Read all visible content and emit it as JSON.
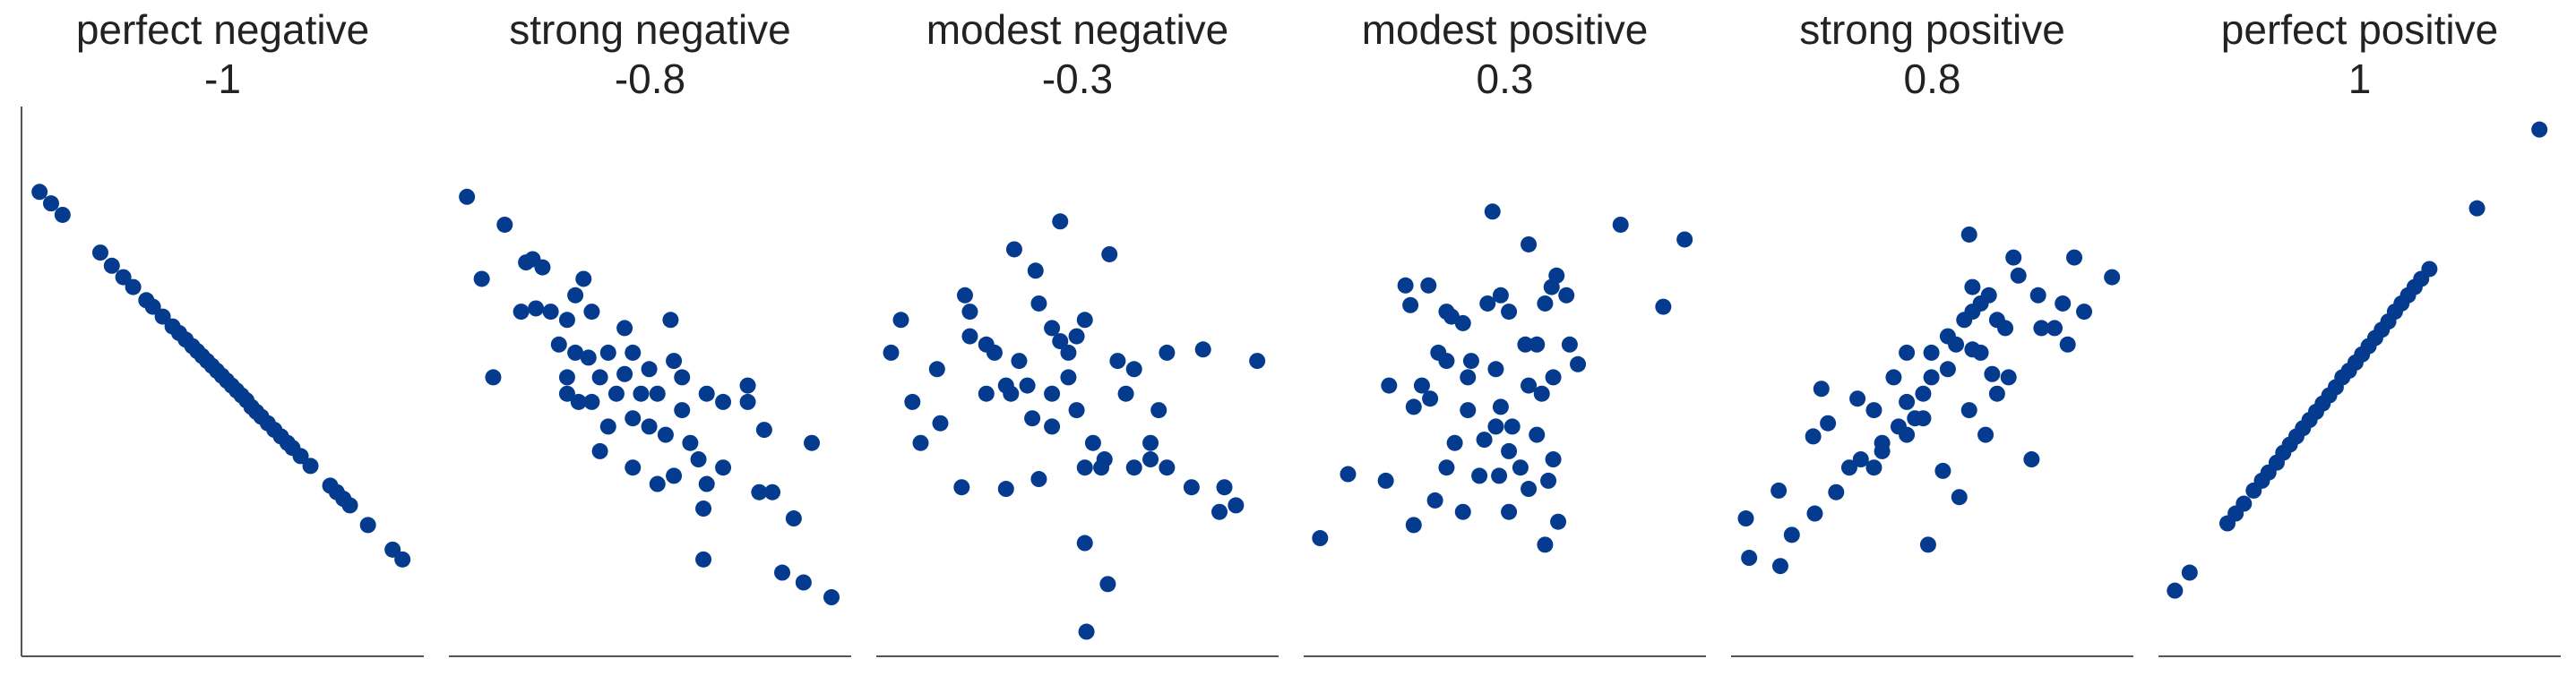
{
  "chart_data": [
    {
      "type": "scatter",
      "title": "perfect negative",
      "subtitle": -1,
      "color": "#053b8f",
      "xlim": [
        0,
        245
      ],
      "ylim": [
        0,
        335
      ],
      "x": [
        11,
        18,
        25,
        48,
        55,
        62,
        68,
        76,
        80,
        86,
        92,
        96,
        100,
        104,
        107,
        110,
        113,
        116,
        119,
        122,
        125,
        128,
        131,
        134,
        137,
        140,
        143,
        146,
        150,
        154,
        158,
        162,
        165,
        170,
        176,
        188,
        192,
        196,
        200,
        211,
        226,
        232
      ],
      "values": [
        283,
        276,
        269,
        246,
        238,
        231,
        225,
        217,
        213,
        207,
        201,
        197,
        193,
        189,
        186,
        183,
        180,
        177,
        174,
        171,
        168,
        165,
        162,
        159,
        156,
        152,
        149,
        146,
        142,
        138,
        134,
        130,
        127,
        122,
        116,
        104,
        100,
        96,
        92,
        80,
        65,
        59
      ]
    },
    {
      "type": "scatter",
      "title": "strong negative",
      "subtitle": -0.8,
      "color": "#053b8f",
      "xlim": [
        0,
        245
      ],
      "ylim": [
        0,
        335
      ],
      "x": [
        11,
        34,
        20,
        51,
        57,
        44,
        53,
        82,
        77,
        72,
        87,
        67,
        77,
        85,
        97,
        112,
        27,
        72,
        92,
        107,
        122,
        135,
        137,
        142,
        127,
        117,
        102,
        87,
        79,
        97,
        112,
        122,
        132,
        142,
        157,
        167,
        182,
        182,
        147,
        112,
        127,
        137,
        152,
        167,
        192,
        157,
        189,
        197,
        210,
        155,
        155,
        221,
        203,
        216,
        233,
        92,
        72,
        62,
        47,
        107
      ],
      "values": [
        280,
        263,
        230,
        242,
        237,
        210,
        212,
        230,
        220,
        205,
        210,
        190,
        185,
        182,
        185,
        185,
        170,
        170,
        170,
        172,
        175,
        205,
        180,
        170,
        160,
        160,
        160,
        155,
        155,
        140,
        145,
        140,
        135,
        150,
        160,
        155,
        165,
        155,
        130,
        115,
        105,
        110,
        120,
        115,
        138,
        105,
        100,
        100,
        84,
        90,
        59,
        130,
        51,
        45,
        36,
        125,
        160,
        210,
        240,
        200
      ]
    },
    {
      "type": "scatter",
      "title": "modest negative",
      "subtitle": -0.3,
      "color": "#053b8f",
      "xlim": [
        0,
        245
      ],
      "ylim": [
        0,
        335
      ],
      "x": [
        15,
        9,
        22,
        27,
        39,
        37,
        54,
        57,
        67,
        72,
        67,
        79,
        84,
        97,
        99,
        107,
        112,
        117,
        122,
        127,
        82,
        92,
        107,
        95,
        107,
        122,
        132,
        139,
        147,
        157,
        152,
        167,
        172,
        177,
        199,
        232,
        52,
        79,
        99,
        127,
        137,
        157,
        167,
        177,
        192,
        212,
        209,
        219,
        127,
        141,
        128,
        112,
        142,
        57,
        87,
        117
      ],
      "values": [
        205,
        185,
        155,
        130,
        142,
        175,
        220,
        210,
        190,
        185,
        160,
        165,
        248,
        235,
        215,
        200,
        192,
        185,
        195,
        205,
        160,
        165,
        160,
        145,
        140,
        150,
        130,
        120,
        180,
        175,
        160,
        130,
        150,
        185,
        187,
        180,
        103,
        102,
        108,
        115,
        115,
        115,
        120,
        115,
        103,
        103,
        88,
        92,
        69,
        44,
        15,
        265,
        245,
        195,
        180,
        170
      ]
    },
    {
      "type": "scatter",
      "title": "modest positive",
      "subtitle": 0.3,
      "color": "#053b8f",
      "xlim": [
        0,
        245
      ],
      "ylim": [
        0,
        335
      ],
      "x": [
        10,
        27,
        50,
        62,
        65,
        76,
        87,
        90,
        97,
        112,
        115,
        120,
        125,
        137,
        147,
        151,
        154,
        160,
        135,
        142,
        162,
        167,
        152,
        137,
        117,
        102,
        87,
        82,
        72,
        52,
        67,
        77,
        100,
        120,
        127,
        145,
        100,
        92,
        110,
        125,
        142,
        152,
        119,
        87,
        80,
        67,
        97,
        137,
        149,
        125,
        155,
        147,
        193,
        219,
        232,
        107,
        132,
        117
      ],
      "values": [
        72,
        111,
        107,
        226,
        214,
        226,
        210,
        207,
        203,
        215,
        271,
        220,
        210,
        251,
        215,
        225,
        232,
        220,
        190,
        190,
        190,
        178,
        170,
        165,
        175,
        180,
        180,
        185,
        165,
        165,
        152,
        157,
        170,
        152,
        140,
        160,
        150,
        130,
        132,
        125,
        135,
        120,
        110,
        115,
        95,
        80,
        88,
        102,
        107,
        88,
        82,
        68,
        263,
        213,
        254,
        110,
        115,
        140
      ]
    },
    {
      "type": "scatter",
      "title": "strong positive",
      "subtitle": 0.8,
      "color": "#053b8f",
      "xlim": [
        0,
        245
      ],
      "ylim": [
        0,
        335
      ],
      "x": [
        9,
        11,
        30,
        29,
        37,
        51,
        50,
        55,
        59,
        64,
        72,
        77,
        79,
        87,
        92,
        92,
        102,
        107,
        112,
        117,
        120,
        87,
        99,
        107,
        117,
        122,
        132,
        137,
        147,
        152,
        132,
        122,
        107,
        142,
        147,
        152,
        157,
        147,
        162,
        167,
        159,
        162,
        145,
        172,
        175,
        187,
        189,
        197,
        202,
        205,
        209,
        215,
        232,
        183,
        139,
        129,
        155,
        145,
        169
      ],
      "values": [
        84,
        60,
        55,
        101,
        74,
        87,
        134,
        163,
        142,
        100,
        115,
        157,
        120,
        115,
        125,
        130,
        140,
        135,
        145,
        145,
        68,
        150,
        170,
        155,
        160,
        170,
        175,
        190,
        187,
        185,
        195,
        185,
        185,
        205,
        210,
        215,
        220,
        225,
        205,
        200,
        172,
        160,
        257,
        243,
        232,
        220,
        200,
        200,
        215,
        190,
        243,
        210,
        231,
        120,
        97,
        113,
        135,
        150,
        170
      ]
    },
    {
      "type": "scatter",
      "title": "perfect positive",
      "subtitle": 1,
      "color": "#053b8f",
      "xlim": [
        0,
        245
      ],
      "ylim": [
        0,
        335
      ],
      "x": [
        10,
        19,
        42,
        47,
        52,
        58,
        63,
        67,
        72,
        76,
        80,
        84,
        88,
        92,
        96,
        100,
        104,
        108,
        112,
        116,
        120,
        124,
        128,
        132,
        136,
        140,
        144,
        148,
        152,
        156,
        160,
        165,
        194,
        232
      ],
      "values": [
        40,
        51,
        81,
        87,
        93,
        101,
        107,
        112,
        118,
        124,
        129,
        134,
        139,
        144,
        149,
        154,
        159,
        164,
        170,
        174,
        179,
        184,
        189,
        194,
        199,
        204,
        210,
        215,
        220,
        225,
        230,
        236,
        273,
        321
      ]
    }
  ]
}
